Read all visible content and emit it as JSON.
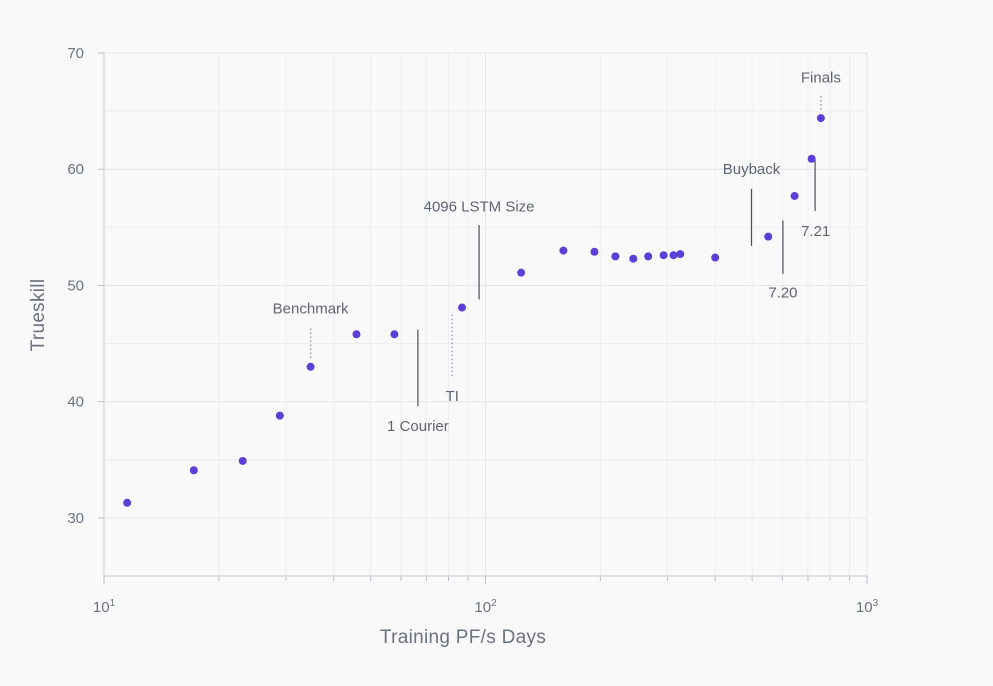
{
  "chart_data": {
    "type": "scatter",
    "title": "",
    "xlabel": "Training PF/s Days",
    "ylabel": "Trueskill",
    "xscale": "log",
    "xlim": [
      10,
      1000
    ],
    "ylim": [
      25,
      70
    ],
    "grid": true,
    "point_color": "#5b3fd6",
    "x_ticks": [
      {
        "value": 10,
        "base": "10",
        "exp": "1"
      },
      {
        "value": 100,
        "base": "10",
        "exp": "2"
      },
      {
        "value": 1000,
        "base": "10",
        "exp": "3"
      }
    ],
    "y_ticks": [
      30,
      40,
      50,
      60,
      70
    ],
    "points": [
      {
        "x": 11.5,
        "y": 31.3
      },
      {
        "x": 17.2,
        "y": 34.1
      },
      {
        "x": 23.1,
        "y": 34.9
      },
      {
        "x": 28.9,
        "y": 38.8
      },
      {
        "x": 34.8,
        "y": 43.0
      },
      {
        "x": 45.9,
        "y": 45.8
      },
      {
        "x": 57.7,
        "y": 45.8
      },
      {
        "x": 86.8,
        "y": 48.1
      },
      {
        "x": 124,
        "y": 51.1
      },
      {
        "x": 160,
        "y": 53.0
      },
      {
        "x": 193,
        "y": 52.9
      },
      {
        "x": 219,
        "y": 52.5
      },
      {
        "x": 244,
        "y": 52.3
      },
      {
        "x": 267,
        "y": 52.5
      },
      {
        "x": 293,
        "y": 52.6
      },
      {
        "x": 311,
        "y": 52.6
      },
      {
        "x": 324,
        "y": 52.7
      },
      {
        "x": 400,
        "y": 52.4
      },
      {
        "x": 551,
        "y": 54.2
      },
      {
        "x": 646,
        "y": 57.7
      },
      {
        "x": 716,
        "y": 60.9
      },
      {
        "x": 757,
        "y": 64.4
      }
    ],
    "annotations": [
      {
        "label": "Benchmark",
        "x": 34.8,
        "line_from": 46.3,
        "line_to": 43.6,
        "label_y": 48.0,
        "style": "dotted",
        "align": "middle"
      },
      {
        "label": "1 Courier",
        "x": 66.5,
        "line_from": 46.2,
        "line_to": 39.6,
        "label_y": 37.9,
        "style": "solid",
        "align": "middle"
      },
      {
        "label": "TI",
        "x": 81.8,
        "line_from": 47.5,
        "line_to": 42.0,
        "label_y": 40.5,
        "style": "dotted",
        "align": "middle"
      },
      {
        "label": "4096 LSTM Size",
        "x": 96.2,
        "line_from": 55.2,
        "line_to": 48.8,
        "label_y": 56.8,
        "style": "solid",
        "align": "middle"
      },
      {
        "label": "Buyback",
        "x": 498,
        "line_from": 58.3,
        "line_to": 53.4,
        "label_y": 60.0,
        "style": "solid",
        "align": "middle"
      },
      {
        "label": "7.20",
        "x": 602,
        "line_from": 55.6,
        "line_to": 51.0,
        "label_y": 49.4,
        "style": "solid",
        "align": "middle"
      },
      {
        "label": "7.21",
        "x": 731,
        "line_from": 60.8,
        "line_to": 56.4,
        "label_y": 54.7,
        "style": "solid",
        "align": "left"
      },
      {
        "label": "Finals",
        "x": 757,
        "line_from": 66.3,
        "line_to": 64.9,
        "label_y": 67.9,
        "style": "dotted",
        "align": "middle"
      }
    ]
  }
}
